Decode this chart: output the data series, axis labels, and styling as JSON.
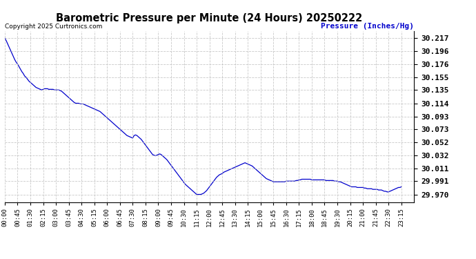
{
  "title": "Barometric Pressure per Minute (24 Hours) 20250222",
  "copyright_text": "Copyright 2025 Curtronics.com",
  "ylabel": "Pressure (Inches/Hg)",
  "ylabel_color": "#0000cc",
  "line_color": "#0000cc",
  "background_color": "#ffffff",
  "grid_color": "#bbbbbb",
  "title_color": "#000000",
  "title_fontsize": 11,
  "yticks": [
    29.97,
    29.991,
    30.011,
    30.032,
    30.052,
    30.073,
    30.093,
    30.114,
    30.135,
    30.155,
    30.176,
    30.196,
    30.217
  ],
  "ylim": [
    29.958,
    30.228
  ],
  "xtick_labels": [
    "00:00",
    "00:45",
    "01:30",
    "02:15",
    "03:00",
    "03:45",
    "04:30",
    "05:15",
    "06:00",
    "06:45",
    "07:30",
    "08:15",
    "09:00",
    "09:45",
    "10:30",
    "11:15",
    "12:00",
    "12:45",
    "13:30",
    "14:15",
    "15:00",
    "15:45",
    "16:30",
    "17:15",
    "18:00",
    "18:45",
    "19:30",
    "20:15",
    "21:00",
    "21:45",
    "22:30",
    "23:15"
  ],
  "key_times_minutes": [
    0,
    45,
    90,
    135,
    180,
    225,
    270,
    315,
    360,
    405,
    450,
    495,
    540,
    585,
    630,
    675,
    720,
    765,
    810,
    855,
    900,
    945,
    990,
    1035,
    1080,
    1125,
    1170,
    1215,
    1260,
    1305,
    1350,
    1395
  ],
  "pressure_curve": [
    [
      0,
      30.217
    ],
    [
      5,
      30.213
    ],
    [
      10,
      30.208
    ],
    [
      15,
      30.203
    ],
    [
      20,
      30.198
    ],
    [
      25,
      30.193
    ],
    [
      30,
      30.188
    ],
    [
      35,
      30.183
    ],
    [
      40,
      30.179
    ],
    [
      45,
      30.176
    ],
    [
      50,
      30.172
    ],
    [
      55,
      30.168
    ],
    [
      60,
      30.164
    ],
    [
      65,
      30.161
    ],
    [
      70,
      30.157
    ],
    [
      75,
      30.155
    ],
    [
      80,
      30.152
    ],
    [
      85,
      30.149
    ],
    [
      90,
      30.147
    ],
    [
      95,
      30.145
    ],
    [
      100,
      30.143
    ],
    [
      105,
      30.141
    ],
    [
      110,
      30.139
    ],
    [
      115,
      30.138
    ],
    [
      120,
      30.137
    ],
    [
      125,
      30.136
    ],
    [
      130,
      30.135
    ],
    [
      135,
      30.136
    ],
    [
      140,
      30.137
    ],
    [
      145,
      30.137
    ],
    [
      150,
      30.137
    ],
    [
      155,
      30.136
    ],
    [
      160,
      30.136
    ],
    [
      165,
      30.136
    ],
    [
      170,
      30.136
    ],
    [
      175,
      30.135
    ],
    [
      180,
      30.135
    ],
    [
      185,
      30.135
    ],
    [
      190,
      30.135
    ],
    [
      195,
      30.134
    ],
    [
      200,
      30.133
    ],
    [
      205,
      30.131
    ],
    [
      210,
      30.129
    ],
    [
      215,
      30.127
    ],
    [
      220,
      30.125
    ],
    [
      225,
      30.123
    ],
    [
      230,
      30.121
    ],
    [
      235,
      30.119
    ],
    [
      240,
      30.117
    ],
    [
      245,
      30.115
    ],
    [
      250,
      30.114
    ],
    [
      255,
      30.114
    ],
    [
      260,
      30.114
    ],
    [
      265,
      30.113
    ],
    [
      270,
      30.113
    ],
    [
      275,
      30.113
    ],
    [
      280,
      30.112
    ],
    [
      285,
      30.111
    ],
    [
      290,
      30.11
    ],
    [
      295,
      30.109
    ],
    [
      300,
      30.108
    ],
    [
      305,
      30.107
    ],
    [
      310,
      30.106
    ],
    [
      315,
      30.105
    ],
    [
      320,
      30.104
    ],
    [
      325,
      30.103
    ],
    [
      330,
      30.102
    ],
    [
      335,
      30.101
    ],
    [
      340,
      30.099
    ],
    [
      345,
      30.097
    ],
    [
      350,
      30.095
    ],
    [
      355,
      30.093
    ],
    [
      360,
      30.091
    ],
    [
      365,
      30.089
    ],
    [
      370,
      30.087
    ],
    [
      375,
      30.085
    ],
    [
      380,
      30.083
    ],
    [
      385,
      30.081
    ],
    [
      390,
      30.079
    ],
    [
      395,
      30.077
    ],
    [
      400,
      30.075
    ],
    [
      405,
      30.073
    ],
    [
      410,
      30.071
    ],
    [
      415,
      30.069
    ],
    [
      420,
      30.067
    ],
    [
      425,
      30.065
    ],
    [
      430,
      30.063
    ],
    [
      435,
      30.062
    ],
    [
      440,
      30.061
    ],
    [
      445,
      30.06
    ],
    [
      450,
      30.059
    ],
    [
      455,
      30.063
    ],
    [
      460,
      30.064
    ],
    [
      465,
      30.063
    ],
    [
      470,
      30.061
    ],
    [
      475,
      30.059
    ],
    [
      480,
      30.057
    ],
    [
      485,
      30.054
    ],
    [
      490,
      30.051
    ],
    [
      495,
      30.048
    ],
    [
      500,
      30.045
    ],
    [
      505,
      30.042
    ],
    [
      510,
      30.039
    ],
    [
      515,
      30.036
    ],
    [
      520,
      30.033
    ],
    [
      525,
      30.032
    ],
    [
      530,
      30.031
    ],
    [
      535,
      30.032
    ],
    [
      540,
      30.033
    ],
    [
      545,
      30.034
    ],
    [
      550,
      30.033
    ],
    [
      555,
      30.031
    ],
    [
      560,
      30.029
    ],
    [
      565,
      30.027
    ],
    [
      570,
      30.025
    ],
    [
      575,
      30.022
    ],
    [
      580,
      30.019
    ],
    [
      585,
      30.016
    ],
    [
      590,
      30.013
    ],
    [
      595,
      30.01
    ],
    [
      600,
      30.007
    ],
    [
      605,
      30.004
    ],
    [
      610,
      30.001
    ],
    [
      615,
      29.998
    ],
    [
      620,
      29.995
    ],
    [
      625,
      29.992
    ],
    [
      630,
      29.989
    ],
    [
      635,
      29.986
    ],
    [
      640,
      29.984
    ],
    [
      645,
      29.982
    ],
    [
      650,
      29.98
    ],
    [
      655,
      29.978
    ],
    [
      660,
      29.976
    ],
    [
      665,
      29.974
    ],
    [
      670,
      29.972
    ],
    [
      675,
      29.97
    ],
    [
      680,
      29.97
    ],
    [
      685,
      29.97
    ],
    [
      690,
      29.97
    ],
    [
      695,
      29.971
    ],
    [
      700,
      29.972
    ],
    [
      705,
      29.974
    ],
    [
      710,
      29.976
    ],
    [
      715,
      29.979
    ],
    [
      720,
      29.982
    ],
    [
      725,
      29.985
    ],
    [
      730,
      29.988
    ],
    [
      735,
      29.991
    ],
    [
      740,
      29.994
    ],
    [
      745,
      29.997
    ],
    [
      750,
      29.999
    ],
    [
      755,
      30.001
    ],
    [
      760,
      30.002
    ],
    [
      765,
      30.003
    ],
    [
      770,
      30.005
    ],
    [
      775,
      30.006
    ],
    [
      780,
      30.007
    ],
    [
      785,
      30.008
    ],
    [
      790,
      30.009
    ],
    [
      795,
      30.01
    ],
    [
      800,
      30.011
    ],
    [
      805,
      30.012
    ],
    [
      810,
      30.013
    ],
    [
      815,
      30.014
    ],
    [
      820,
      30.015
    ],
    [
      825,
      30.016
    ],
    [
      830,
      30.017
    ],
    [
      835,
      30.018
    ],
    [
      840,
      30.019
    ],
    [
      845,
      30.02
    ],
    [
      850,
      30.019
    ],
    [
      855,
      30.018
    ],
    [
      860,
      30.017
    ],
    [
      865,
      30.016
    ],
    [
      870,
      30.015
    ],
    [
      875,
      30.013
    ],
    [
      880,
      30.011
    ],
    [
      885,
      30.009
    ],
    [
      890,
      30.007
    ],
    [
      895,
      30.005
    ],
    [
      900,
      30.003
    ],
    [
      905,
      30.001
    ],
    [
      910,
      29.999
    ],
    [
      915,
      29.997
    ],
    [
      920,
      29.995
    ],
    [
      925,
      29.994
    ],
    [
      930,
      29.993
    ],
    [
      935,
      29.992
    ],
    [
      940,
      29.991
    ],
    [
      945,
      29.99
    ],
    [
      950,
      29.99
    ],
    [
      955,
      29.99
    ],
    [
      960,
      29.99
    ],
    [
      965,
      29.99
    ],
    [
      970,
      29.99
    ],
    [
      975,
      29.99
    ],
    [
      980,
      29.99
    ],
    [
      985,
      29.99
    ],
    [
      990,
      29.991
    ],
    [
      995,
      29.991
    ],
    [
      1000,
      29.991
    ],
    [
      1005,
      29.991
    ],
    [
      1010,
      29.991
    ],
    [
      1015,
      29.991
    ],
    [
      1020,
      29.991
    ],
    [
      1025,
      29.992
    ],
    [
      1030,
      29.992
    ],
    [
      1035,
      29.993
    ],
    [
      1040,
      29.993
    ],
    [
      1045,
      29.994
    ],
    [
      1050,
      29.994
    ],
    [
      1055,
      29.994
    ],
    [
      1060,
      29.994
    ],
    [
      1065,
      29.994
    ],
    [
      1070,
      29.994
    ],
    [
      1075,
      29.994
    ],
    [
      1080,
      29.993
    ],
    [
      1085,
      29.993
    ],
    [
      1090,
      29.993
    ],
    [
      1095,
      29.993
    ],
    [
      1100,
      29.993
    ],
    [
      1105,
      29.993
    ],
    [
      1110,
      29.993
    ],
    [
      1115,
      29.993
    ],
    [
      1120,
      29.993
    ],
    [
      1125,
      29.993
    ],
    [
      1130,
      29.992
    ],
    [
      1135,
      29.992
    ],
    [
      1140,
      29.992
    ],
    [
      1145,
      29.992
    ],
    [
      1150,
      29.992
    ],
    [
      1155,
      29.992
    ],
    [
      1160,
      29.991
    ],
    [
      1165,
      29.991
    ],
    [
      1170,
      29.991
    ],
    [
      1175,
      29.99
    ],
    [
      1180,
      29.99
    ],
    [
      1185,
      29.989
    ],
    [
      1190,
      29.988
    ],
    [
      1195,
      29.987
    ],
    [
      1200,
      29.986
    ],
    [
      1205,
      29.985
    ],
    [
      1210,
      29.984
    ],
    [
      1215,
      29.983
    ],
    [
      1220,
      29.982
    ],
    [
      1225,
      29.982
    ],
    [
      1230,
      29.982
    ],
    [
      1235,
      29.982
    ],
    [
      1240,
      29.981
    ],
    [
      1245,
      29.981
    ],
    [
      1250,
      29.981
    ],
    [
      1255,
      29.981
    ],
    [
      1260,
      29.981
    ],
    [
      1265,
      29.98
    ],
    [
      1270,
      29.98
    ],
    [
      1275,
      29.979
    ],
    [
      1280,
      29.979
    ],
    [
      1285,
      29.979
    ],
    [
      1290,
      29.979
    ],
    [
      1295,
      29.978
    ],
    [
      1300,
      29.978
    ],
    [
      1305,
      29.978
    ],
    [
      1310,
      29.978
    ],
    [
      1315,
      29.977
    ],
    [
      1320,
      29.977
    ],
    [
      1325,
      29.977
    ],
    [
      1330,
      29.976
    ],
    [
      1335,
      29.975
    ],
    [
      1340,
      29.975
    ],
    [
      1345,
      29.974
    ],
    [
      1350,
      29.974
    ],
    [
      1355,
      29.975
    ],
    [
      1360,
      29.976
    ],
    [
      1365,
      29.977
    ],
    [
      1370,
      29.978
    ],
    [
      1375,
      29.979
    ],
    [
      1380,
      29.98
    ],
    [
      1385,
      29.981
    ],
    [
      1390,
      29.981
    ],
    [
      1395,
      29.982
    ]
  ]
}
